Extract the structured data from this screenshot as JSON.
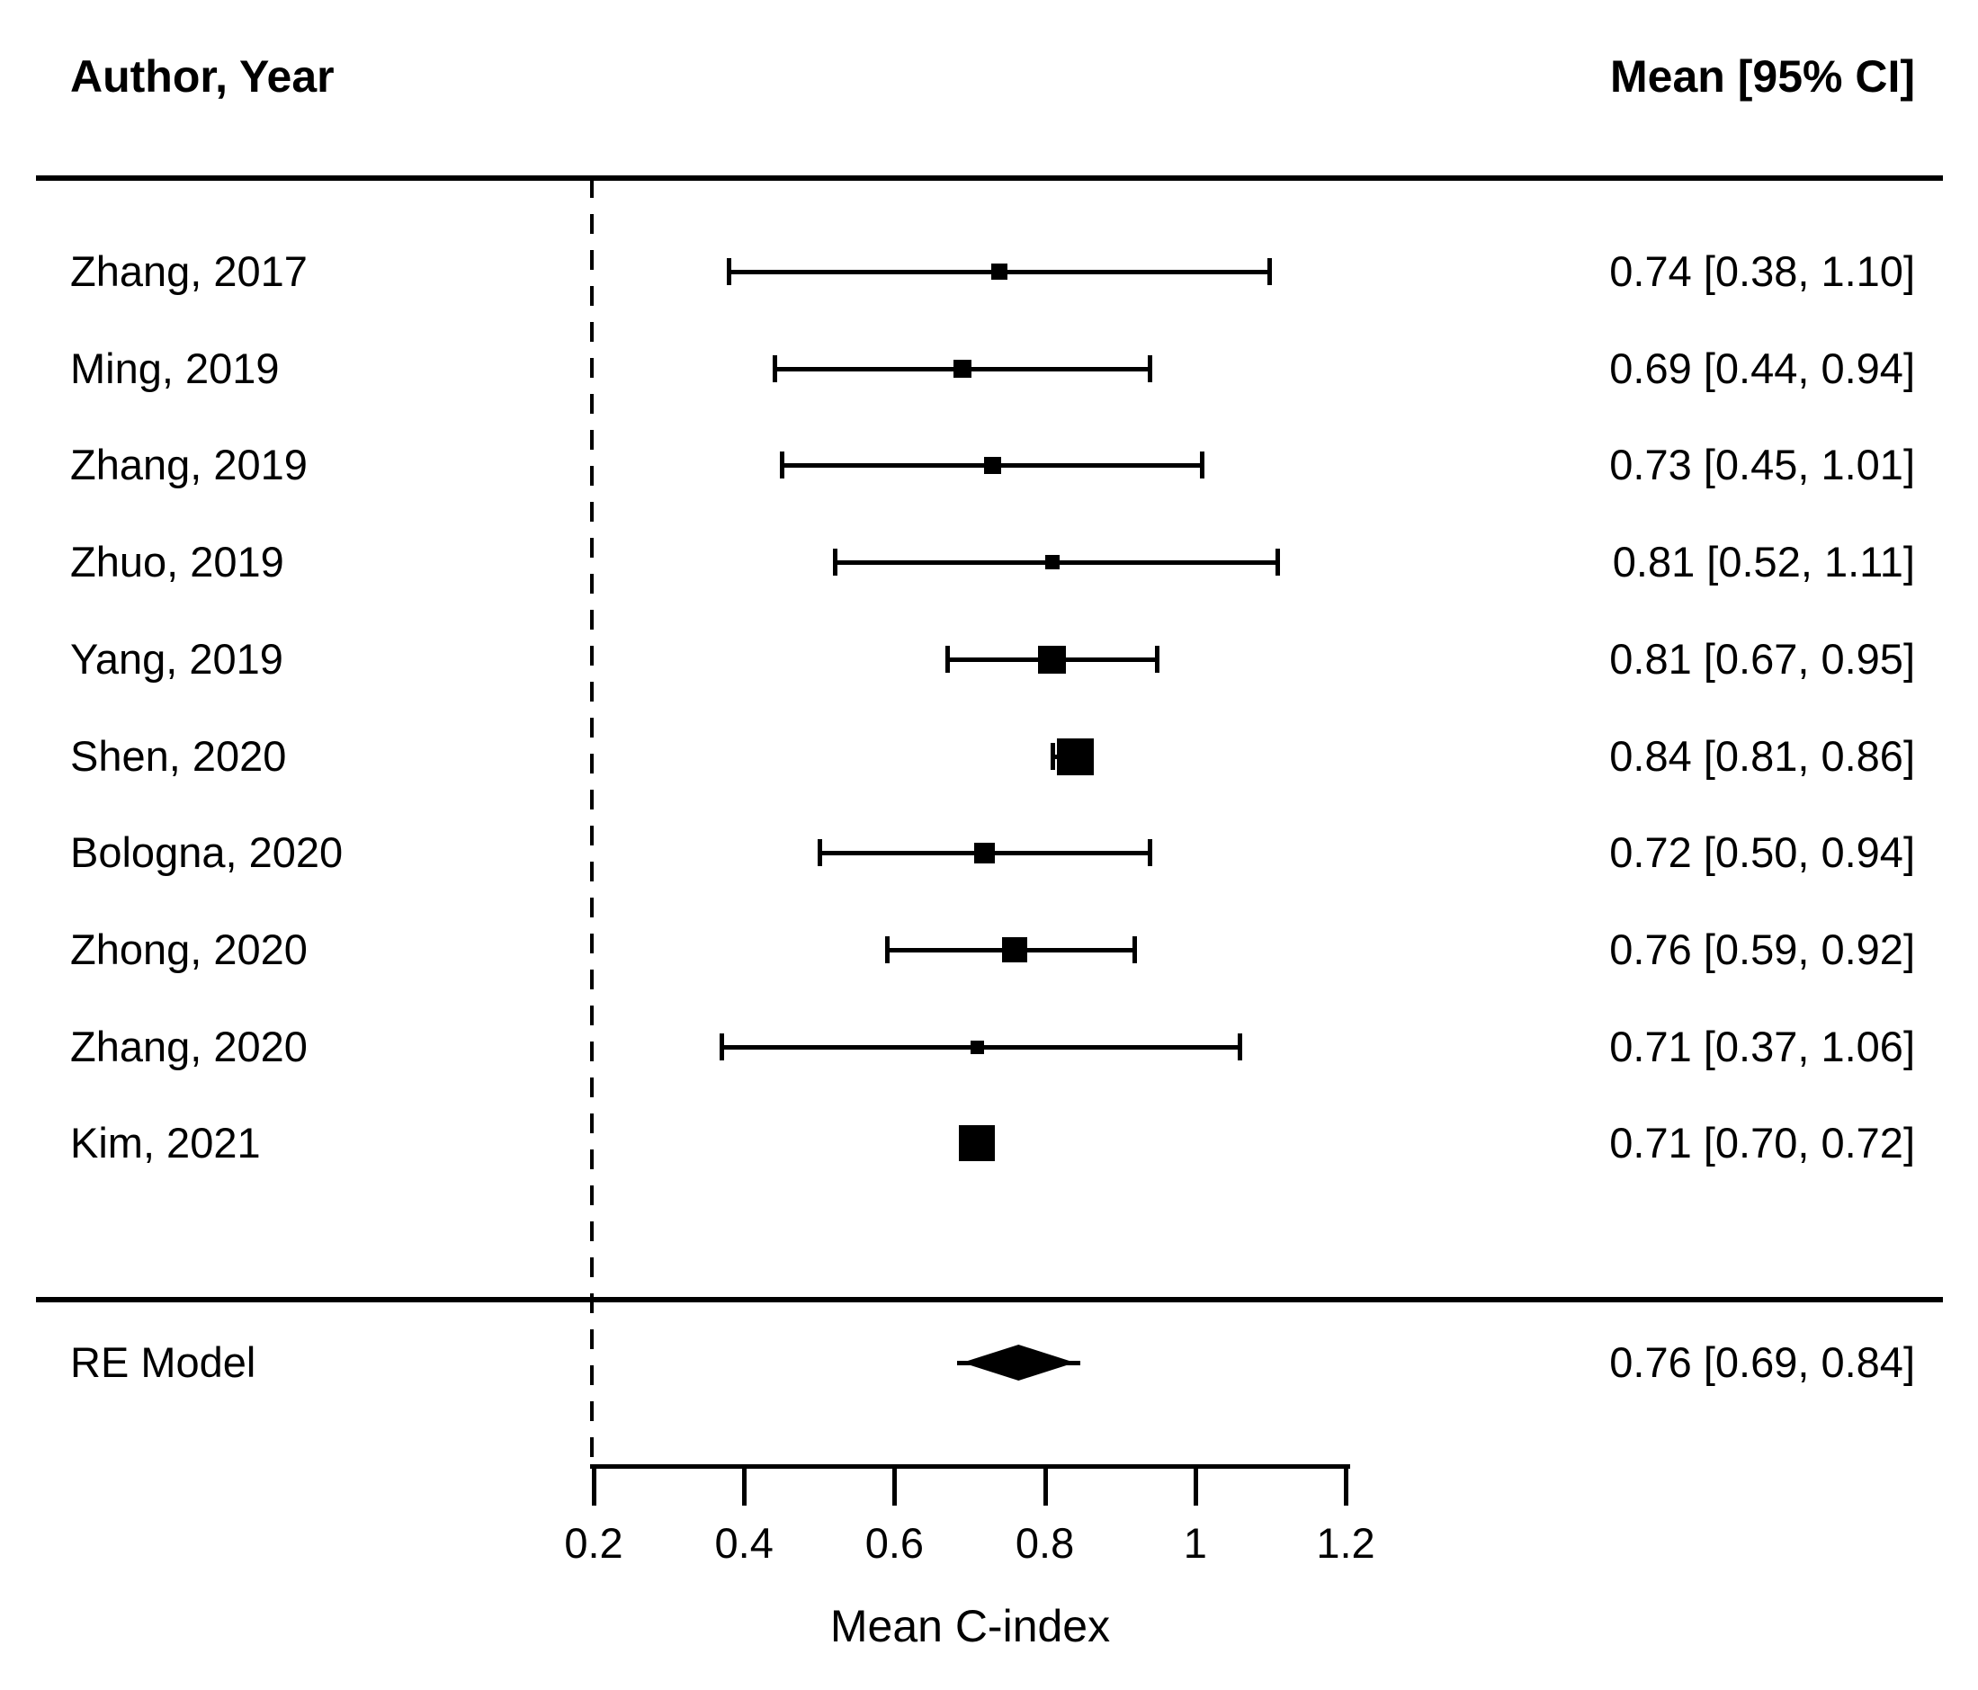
{
  "header": {
    "left": "Author, Year",
    "right": "Mean [95% CI]"
  },
  "chart_data": {
    "type": "forest",
    "xlabel": "Mean C-index",
    "xlim": [
      0.2,
      1.2
    ],
    "x_ticks": [
      0.2,
      0.4,
      0.6,
      0.8,
      1,
      1.2
    ],
    "x_tick_labels": [
      "0.2",
      "0.4",
      "0.6",
      "0.8",
      "1",
      "1.2"
    ],
    "reference_line_x": 0.2,
    "grid": false,
    "studies": [
      {
        "label": "Zhang, 2017",
        "mean": 0.74,
        "ci_lower": 0.38,
        "ci_upper": 1.1,
        "display": "0.74 [0.38, 1.10]",
        "marker_px": 18
      },
      {
        "label": "Ming, 2019",
        "mean": 0.69,
        "ci_lower": 0.44,
        "ci_upper": 0.94,
        "display": "0.69 [0.44, 0.94]",
        "marker_px": 20
      },
      {
        "label": "Zhang, 2019",
        "mean": 0.73,
        "ci_lower": 0.45,
        "ci_upper": 1.01,
        "display": "0.73 [0.45, 1.01]",
        "marker_px": 19
      },
      {
        "label": "Zhuo, 2019",
        "mean": 0.81,
        "ci_lower": 0.52,
        "ci_upper": 1.11,
        "display": "0.81 [0.52, 1.11]",
        "marker_px": 16
      },
      {
        "label": "Yang, 2019",
        "mean": 0.81,
        "ci_lower": 0.67,
        "ci_upper": 0.95,
        "display": "0.81 [0.67, 0.95]",
        "marker_px": 31
      },
      {
        "label": "Shen, 2020",
        "mean": 0.84,
        "ci_lower": 0.81,
        "ci_upper": 0.86,
        "display": "0.84 [0.81, 0.86]",
        "marker_px": 41
      },
      {
        "label": "Bologna, 2020",
        "mean": 0.72,
        "ci_lower": 0.5,
        "ci_upper": 0.94,
        "display": "0.72 [0.50, 0.94]",
        "marker_px": 23
      },
      {
        "label": "Zhong, 2020",
        "mean": 0.76,
        "ci_lower": 0.59,
        "ci_upper": 0.92,
        "display": "0.76 [0.59, 0.92]",
        "marker_px": 28
      },
      {
        "label": "Zhang, 2020",
        "mean": 0.71,
        "ci_lower": 0.37,
        "ci_upper": 1.06,
        "display": "0.71 [0.37, 1.06]",
        "marker_px": 15
      },
      {
        "label": "Kim, 2021",
        "mean": 0.71,
        "ci_lower": 0.7,
        "ci_upper": 0.72,
        "display": "0.71 [0.70, 0.72]",
        "marker_px": 40
      }
    ],
    "summary": {
      "label": "RE Model",
      "mean": 0.76,
      "ci_lower": 0.69,
      "ci_upper": 0.84,
      "display": "0.76 [0.69, 0.84]"
    }
  },
  "colors": {
    "foreground": "#000000",
    "background": "#ffffff"
  }
}
